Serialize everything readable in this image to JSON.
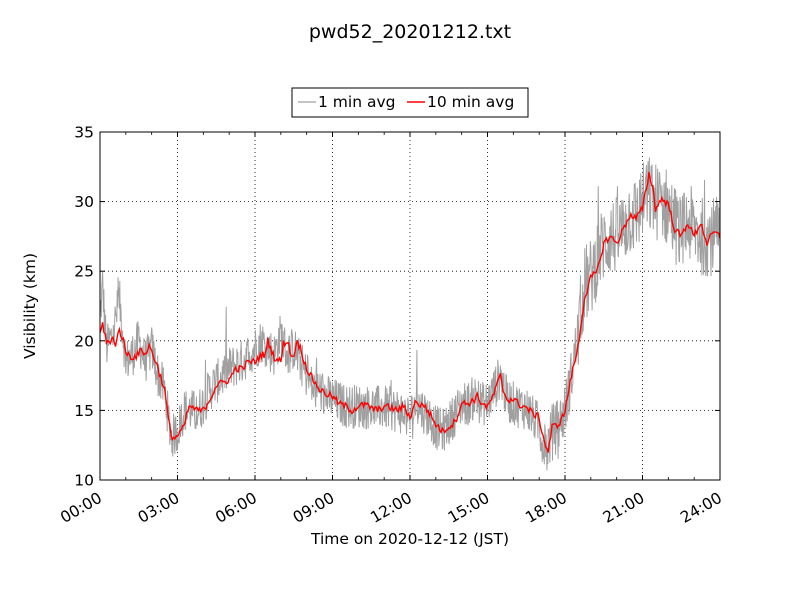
{
  "chart_data": {
    "type": "line",
    "title": "pwd52_20201212.txt",
    "xlabel": "Time on 2020-12-12 (JST)",
    "ylabel": "Visibility (km)",
    "xlim": [
      "00:00",
      "24:00"
    ],
    "ylim": [
      10,
      35
    ],
    "grid": true,
    "legend_position": "top-center",
    "x_tick_labels": [
      "00:00",
      "03:00",
      "06:00",
      "09:00",
      "12:00",
      "15:00",
      "18:00",
      "21:00",
      "24:00"
    ],
    "y_tick_labels": [
      "10",
      "15",
      "20",
      "25",
      "30",
      "35"
    ],
    "x_ticks_hours": [
      0,
      3,
      6,
      9,
      12,
      15,
      18,
      21,
      24
    ],
    "y_ticks": [
      10,
      15,
      20,
      25,
      30,
      35
    ],
    "series": [
      {
        "name": "1 min avg",
        "color": "#a0a0a0",
        "noise_amplitude_km": 1.8,
        "note_points": "hour, km",
        "points": [
          [
            0.0,
            21.5
          ],
          [
            0.1,
            24.0
          ],
          [
            0.25,
            19.5
          ],
          [
            0.5,
            20.5
          ],
          [
            0.75,
            23.0
          ],
          [
            1.0,
            18.5
          ],
          [
            1.25,
            19.0
          ],
          [
            1.5,
            20.0
          ],
          [
            1.75,
            18.5
          ],
          [
            2.0,
            19.5
          ],
          [
            2.25,
            17.5
          ],
          [
            2.5,
            16.5
          ],
          [
            2.75,
            13.0
          ],
          [
            3.0,
            13.5
          ],
          [
            3.25,
            15.0
          ],
          [
            3.5,
            15.0
          ],
          [
            3.75,
            14.8
          ],
          [
            4.0,
            15.5
          ],
          [
            4.25,
            16.5
          ],
          [
            4.5,
            17.0
          ],
          [
            4.75,
            17.5
          ],
          [
            5.0,
            18.0
          ],
          [
            5.5,
            18.5
          ],
          [
            6.0,
            19.5
          ],
          [
            6.25,
            20.0
          ],
          [
            6.5,
            19.5
          ],
          [
            6.75,
            19.0
          ],
          [
            7.0,
            20.5
          ],
          [
            7.25,
            19.0
          ],
          [
            7.5,
            19.5
          ],
          [
            7.75,
            18.5
          ],
          [
            8.0,
            17.5
          ],
          [
            8.25,
            16.5
          ],
          [
            8.5,
            16.5
          ],
          [
            8.75,
            16.0
          ],
          [
            9.0,
            15.8
          ],
          [
            9.5,
            15.3
          ],
          [
            10.0,
            15.3
          ],
          [
            10.5,
            15.2
          ],
          [
            11.0,
            15.2
          ],
          [
            11.5,
            15.0
          ],
          [
            11.75,
            14.8
          ],
          [
            12.0,
            14.5
          ],
          [
            12.25,
            15.5
          ],
          [
            12.5,
            15.0
          ],
          [
            12.75,
            14.5
          ],
          [
            13.0,
            13.8
          ],
          [
            13.25,
            13.5
          ],
          [
            13.5,
            14.0
          ],
          [
            13.75,
            14.8
          ],
          [
            14.0,
            15.5
          ],
          [
            14.25,
            15.5
          ],
          [
            14.5,
            16.0
          ],
          [
            14.75,
            15.5
          ],
          [
            15.0,
            15.5
          ],
          [
            15.25,
            16.5
          ],
          [
            15.5,
            17.5
          ],
          [
            15.75,
            15.8
          ],
          [
            16.0,
            15.5
          ],
          [
            16.25,
            15.3
          ],
          [
            16.5,
            15.2
          ],
          [
            16.75,
            14.5
          ],
          [
            17.0,
            14.0
          ],
          [
            17.25,
            12.0
          ],
          [
            17.5,
            13.5
          ],
          [
            17.75,
            14.0
          ],
          [
            18.0,
            15.0
          ],
          [
            18.25,
            17.5
          ],
          [
            18.5,
            20.5
          ],
          [
            18.75,
            24.0
          ],
          [
            19.0,
            24.5
          ],
          [
            19.25,
            26.0
          ],
          [
            19.5,
            27.0
          ],
          [
            19.75,
            27.5
          ],
          [
            20.0,
            27.5
          ],
          [
            20.25,
            28.0
          ],
          [
            20.5,
            29.0
          ],
          [
            20.75,
            29.0
          ],
          [
            21.0,
            30.0
          ],
          [
            21.25,
            30.5
          ],
          [
            21.5,
            30.0
          ],
          [
            21.75,
            30.0
          ],
          [
            22.0,
            29.5
          ],
          [
            22.25,
            28.5
          ],
          [
            22.5,
            27.5
          ],
          [
            22.75,
            28.5
          ],
          [
            23.0,
            28.0
          ],
          [
            23.25,
            27.5
          ],
          [
            23.5,
            27.5
          ],
          [
            23.75,
            27.5
          ],
          [
            24.0,
            27.5
          ]
        ]
      },
      {
        "name": "10 min avg",
        "color": "#ff0000",
        "note_points": "hour, km",
        "points": [
          [
            0.0,
            20.5
          ],
          [
            0.1,
            21.2
          ],
          [
            0.25,
            20.0
          ],
          [
            0.4,
            19.8
          ],
          [
            0.5,
            20.2
          ],
          [
            0.6,
            19.8
          ],
          [
            0.75,
            20.8
          ],
          [
            0.9,
            20.0
          ],
          [
            1.0,
            19.2
          ],
          [
            1.25,
            18.8
          ],
          [
            1.5,
            19.0
          ],
          [
            1.6,
            19.5
          ],
          [
            1.75,
            19.0
          ],
          [
            1.9,
            19.6
          ],
          [
            2.0,
            19.3
          ],
          [
            2.25,
            18.0
          ],
          [
            2.5,
            16.5
          ],
          [
            2.6,
            15.0
          ],
          [
            2.75,
            13.2
          ],
          [
            2.9,
            13.0
          ],
          [
            3.0,
            13.2
          ],
          [
            3.25,
            13.8
          ],
          [
            3.4,
            15.0
          ],
          [
            3.5,
            15.3
          ],
          [
            3.75,
            15.0
          ],
          [
            4.0,
            15.0
          ],
          [
            4.25,
            15.8
          ],
          [
            4.5,
            16.8
          ],
          [
            4.75,
            17.0
          ],
          [
            5.0,
            17.2
          ],
          [
            5.25,
            18.0
          ],
          [
            5.5,
            18.0
          ],
          [
            5.75,
            18.5
          ],
          [
            6.0,
            18.5
          ],
          [
            6.25,
            19.0
          ],
          [
            6.4,
            19.0
          ],
          [
            6.5,
            20.0
          ],
          [
            6.6,
            19.5
          ],
          [
            6.75,
            18.8
          ],
          [
            7.0,
            18.5
          ],
          [
            7.1,
            19.8
          ],
          [
            7.25,
            20.0
          ],
          [
            7.4,
            19.0
          ],
          [
            7.5,
            18.8
          ],
          [
            7.6,
            20.0
          ],
          [
            7.75,
            19.5
          ],
          [
            8.0,
            18.0
          ],
          [
            8.25,
            17.2
          ],
          [
            8.5,
            16.5
          ],
          [
            8.75,
            16.2
          ],
          [
            9.0,
            16.0
          ],
          [
            9.25,
            15.5
          ],
          [
            9.5,
            15.3
          ],
          [
            9.75,
            15.0
          ],
          [
            10.0,
            15.3
          ],
          [
            10.25,
            15.4
          ],
          [
            10.5,
            15.2
          ],
          [
            10.75,
            15.0
          ],
          [
            11.0,
            15.3
          ],
          [
            11.25,
            15.2
          ],
          [
            11.5,
            15.0
          ],
          [
            11.75,
            15.3
          ],
          [
            12.0,
            14.5
          ],
          [
            12.25,
            15.8
          ],
          [
            12.4,
            15.2
          ],
          [
            12.5,
            15.5
          ],
          [
            12.75,
            14.8
          ],
          [
            13.0,
            14.0
          ],
          [
            13.25,
            13.5
          ],
          [
            13.5,
            13.8
          ],
          [
            13.75,
            14.2
          ],
          [
            14.0,
            15.5
          ],
          [
            14.25,
            15.5
          ],
          [
            14.5,
            15.8
          ],
          [
            14.6,
            16.0
          ],
          [
            14.75,
            15.6
          ],
          [
            15.0,
            15.2
          ],
          [
            15.25,
            16.2
          ],
          [
            15.5,
            17.5
          ],
          [
            15.6,
            16.5
          ],
          [
            15.75,
            15.8
          ],
          [
            16.0,
            15.8
          ],
          [
            16.25,
            15.4
          ],
          [
            16.5,
            15.2
          ],
          [
            16.75,
            14.8
          ],
          [
            17.0,
            14.5
          ],
          [
            17.1,
            13.5
          ],
          [
            17.25,
            12.5
          ],
          [
            17.35,
            12.0
          ],
          [
            17.5,
            13.8
          ],
          [
            17.75,
            14.0
          ],
          [
            17.9,
            14.5
          ],
          [
            18.0,
            15.0
          ],
          [
            18.25,
            17.5
          ],
          [
            18.5,
            19.5
          ],
          [
            18.75,
            23.0
          ],
          [
            19.0,
            24.5
          ],
          [
            19.25,
            25.0
          ],
          [
            19.5,
            27.0
          ],
          [
            19.75,
            27.5
          ],
          [
            20.0,
            27.0
          ],
          [
            20.25,
            28.0
          ],
          [
            20.5,
            29.0
          ],
          [
            20.75,
            28.8
          ],
          [
            21.0,
            29.5
          ],
          [
            21.1,
            30.5
          ],
          [
            21.25,
            32.0
          ],
          [
            21.4,
            31.0
          ],
          [
            21.5,
            29.5
          ],
          [
            21.75,
            30.2
          ],
          [
            22.0,
            29.8
          ],
          [
            22.25,
            28.0
          ],
          [
            22.5,
            27.5
          ],
          [
            22.75,
            28.5
          ],
          [
            23.0,
            27.5
          ],
          [
            23.25,
            28.5
          ],
          [
            23.5,
            27.0
          ],
          [
            23.75,
            27.8
          ],
          [
            24.0,
            27.5
          ]
        ]
      }
    ]
  }
}
